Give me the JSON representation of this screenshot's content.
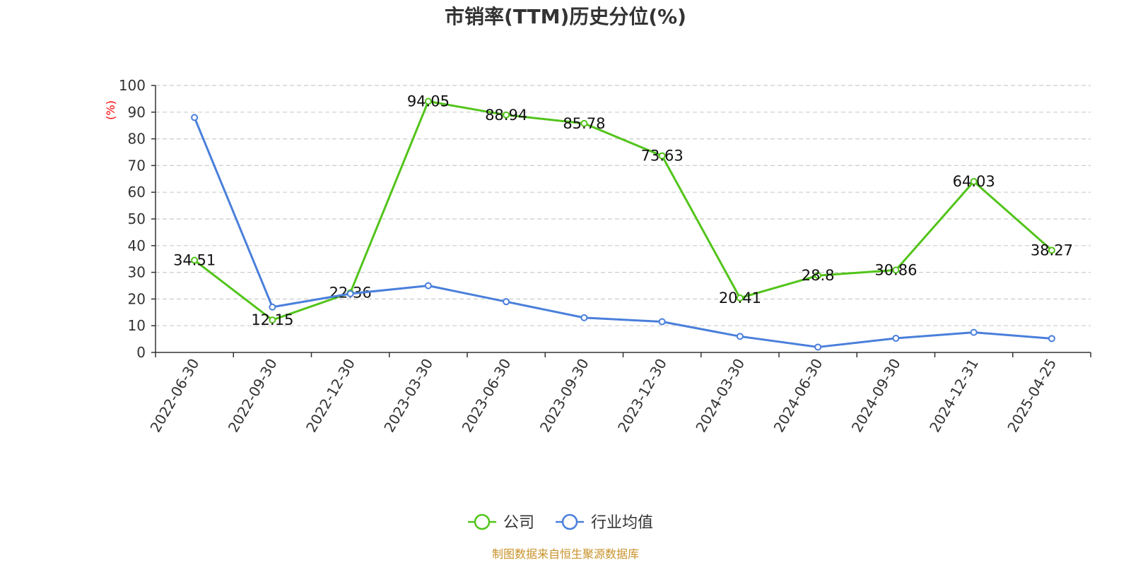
{
  "chart_data": {
    "type": "line",
    "title": "市销率(TTM)历史分位(%)",
    "ylabel": "(%)",
    "ylim": [
      0,
      100
    ],
    "yticks": [
      0,
      10,
      20,
      30,
      40,
      50,
      60,
      70,
      80,
      90,
      100
    ],
    "grid": true,
    "legend_position": "bottom",
    "categories": [
      "2022-06-30",
      "2022-09-30",
      "2022-12-30",
      "2023-03-30",
      "2023-06-30",
      "2023-09-30",
      "2023-12-30",
      "2024-03-30",
      "2024-06-30",
      "2024-09-30",
      "2024-12-31",
      "2025-04-25"
    ],
    "series": [
      {
        "name": "公司",
        "color": "#52c41a",
        "values": [
          34.51,
          12.15,
          22.36,
          94.05,
          88.94,
          85.78,
          73.63,
          20.41,
          28.8,
          30.86,
          64.03,
          38.27
        ],
        "labels": [
          "34.51",
          "12.15",
          "22.36",
          "94.05",
          "88.94",
          "85.78",
          "73.63",
          "20.41",
          "28.8",
          "30.86",
          "64.03",
          "38.27"
        ]
      },
      {
        "name": "行业均值",
        "color": "#4a7fdb",
        "values": [
          88,
          17,
          22,
          25,
          19,
          13,
          11.5,
          6,
          2,
          5.3,
          7.5,
          5.2
        ]
      }
    ],
    "source": "制图数据来自恒生聚源数据库",
    "ylabel_color": "#ff0000",
    "source_color": "#c8922a"
  }
}
